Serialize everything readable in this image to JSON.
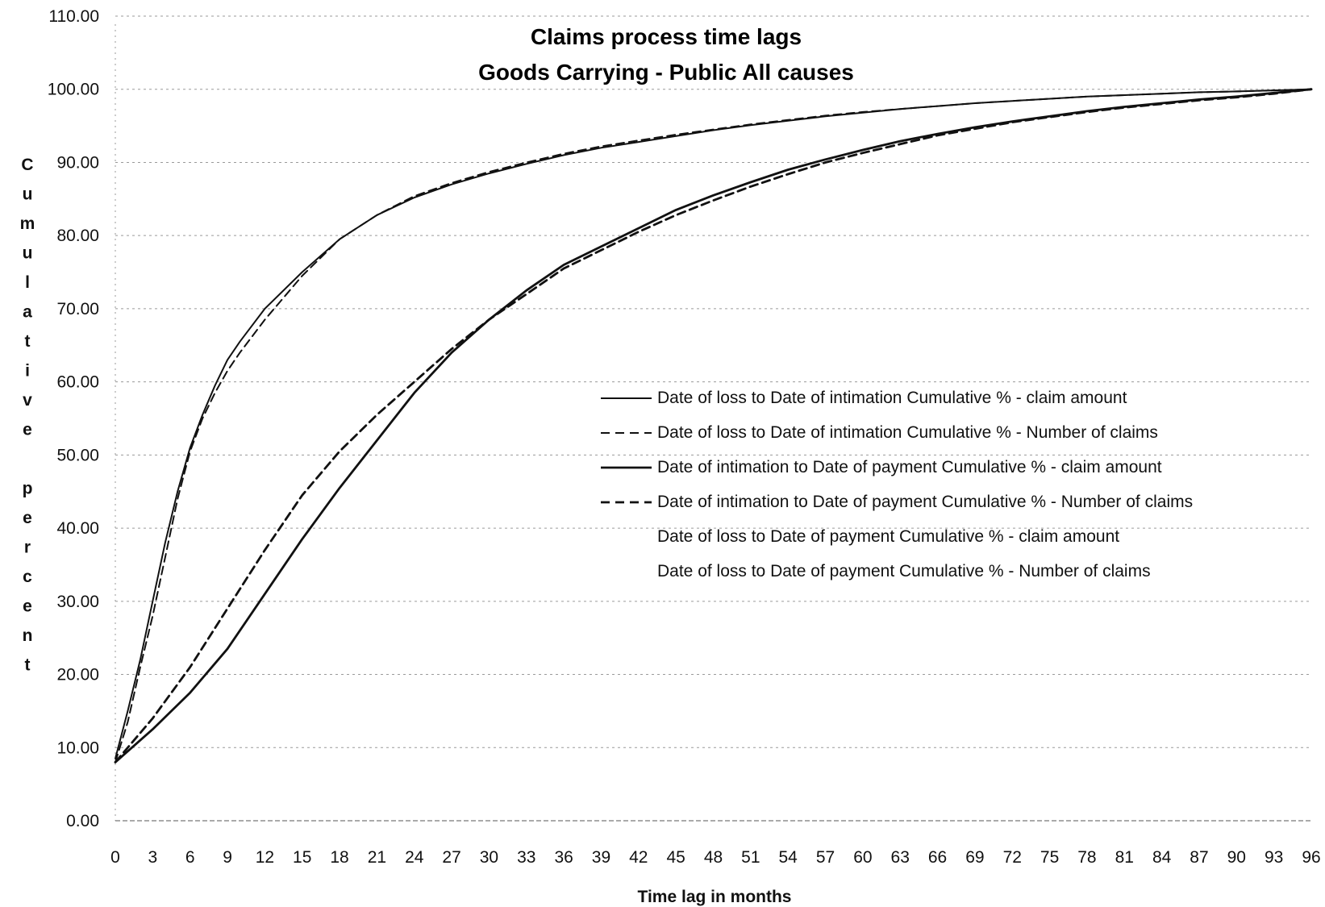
{
  "chart_data": {
    "type": "line",
    "title": "Claims process time lags",
    "subtitle": "Goods Carrying - Public All causes",
    "xlabel": "Time lag in months",
    "ylabel": "Cumulative percent",
    "xlim": [
      0,
      96
    ],
    "ylim": [
      0,
      110
    ],
    "x_ticks": [
      0,
      3,
      6,
      9,
      12,
      15,
      18,
      21,
      24,
      27,
      30,
      33,
      36,
      39,
      42,
      45,
      48,
      51,
      54,
      57,
      60,
      63,
      66,
      69,
      72,
      75,
      78,
      81,
      84,
      87,
      90,
      93,
      96
    ],
    "y_ticks": [
      "0.00",
      "10.00",
      "20.00",
      "30.00",
      "40.00",
      "50.00",
      "60.00",
      "70.00",
      "80.00",
      "90.00",
      "100.00",
      "110.00"
    ],
    "grid": true,
    "legend_position": "center-right",
    "series": [
      {
        "name": "Date of loss to Date of intimation Cumulative % - claim amount",
        "style": "solid",
        "stroke": "thin",
        "x": [
          0,
          1,
          2,
          3,
          4,
          5,
          6,
          7,
          8,
          9,
          10,
          12,
          15,
          18,
          21,
          24,
          27,
          30,
          33,
          36,
          39,
          42,
          45,
          48,
          51,
          54,
          57,
          60,
          63,
          66,
          69,
          72,
          75,
          78,
          81,
          84,
          87,
          90,
          93,
          96
        ],
        "values": [
          8.5,
          15,
          22,
          30,
          38,
          45,
          51,
          55.5,
          59.5,
          63,
          65.5,
          70,
          75,
          79.5,
          82.8,
          85.2,
          87,
          88.5,
          89.8,
          91,
          92,
          92.8,
          93.6,
          94.4,
          95.1,
          95.7,
          96.3,
          96.8,
          97.3,
          97.7,
          98.1,
          98.4,
          98.7,
          99,
          99.2,
          99.4,
          99.6,
          99.7,
          99.85,
          100
        ]
      },
      {
        "name": "Date of loss to Date of intimation Cumulative % - Number of claims",
        "style": "dashed",
        "stroke": "thin",
        "x": [
          0,
          1,
          2,
          3,
          4,
          5,
          6,
          7,
          8,
          9,
          10,
          12,
          15,
          18,
          21,
          24,
          27,
          30,
          33,
          36,
          39,
          42,
          45,
          48,
          51,
          54,
          57,
          60,
          63,
          66,
          69,
          72,
          75,
          78,
          81,
          84,
          87,
          90,
          93,
          96
        ],
        "values": [
          8,
          13.5,
          21,
          28,
          36,
          44,
          50.5,
          55,
          58.5,
          61.5,
          64,
          68.5,
          74.5,
          79.5,
          82.8,
          85.4,
          87.2,
          88.7,
          90,
          91.2,
          92.2,
          93,
          93.8,
          94.5,
          95.2,
          95.8,
          96.4,
          96.9,
          97.3,
          97.7,
          98.1,
          98.4,
          98.7,
          99,
          99.2,
          99.4,
          99.6,
          99.7,
          99.85,
          100
        ]
      },
      {
        "name": "Date of intimation to Date of payment Cumulative % - claim amount",
        "style": "solid",
        "stroke": "thick",
        "x": [
          0,
          3,
          6,
          9,
          12,
          15,
          18,
          21,
          24,
          27,
          30,
          33,
          36,
          39,
          42,
          45,
          48,
          51,
          54,
          57,
          60,
          63,
          66,
          69,
          72,
          75,
          78,
          81,
          84,
          87,
          90,
          93,
          96
        ],
        "values": [
          8,
          12.5,
          17.5,
          23.5,
          31,
          38.5,
          45.5,
          52,
          58.5,
          64,
          68.5,
          72.5,
          76,
          78.5,
          81,
          83.5,
          85.5,
          87.3,
          89,
          90.4,
          91.7,
          92.9,
          93.9,
          94.8,
          95.6,
          96.3,
          97,
          97.6,
          98.1,
          98.6,
          99,
          99.5,
          100
        ]
      },
      {
        "name": "Date of intimation to Date of payment Cumulative % - Number of claims",
        "style": "dashed",
        "stroke": "thick",
        "x": [
          0,
          3,
          6,
          9,
          12,
          15,
          18,
          21,
          24,
          27,
          30,
          33,
          36,
          39,
          42,
          45,
          48,
          51,
          54,
          57,
          60,
          63,
          66,
          69,
          72,
          75,
          78,
          81,
          84,
          87,
          90,
          93,
          96
        ],
        "values": [
          8,
          14,
          21,
          29,
          37,
          44.5,
          50.5,
          55.5,
          60,
          64.5,
          68.5,
          72,
          75.5,
          78,
          80.5,
          82.8,
          84.8,
          86.7,
          88.4,
          90,
          91.3,
          92.5,
          93.7,
          94.6,
          95.5,
          96.2,
          96.9,
          97.5,
          98,
          98.5,
          98.9,
          99.4,
          100
        ]
      },
      {
        "name": "Date of loss to Date of payment Cumulative % - claim amount",
        "style": "none",
        "stroke": "none",
        "x": [],
        "values": []
      },
      {
        "name": "Date of loss to Date of payment Cumulative % - Number of claims",
        "style": "none",
        "stroke": "none",
        "x": [],
        "values": []
      }
    ]
  }
}
